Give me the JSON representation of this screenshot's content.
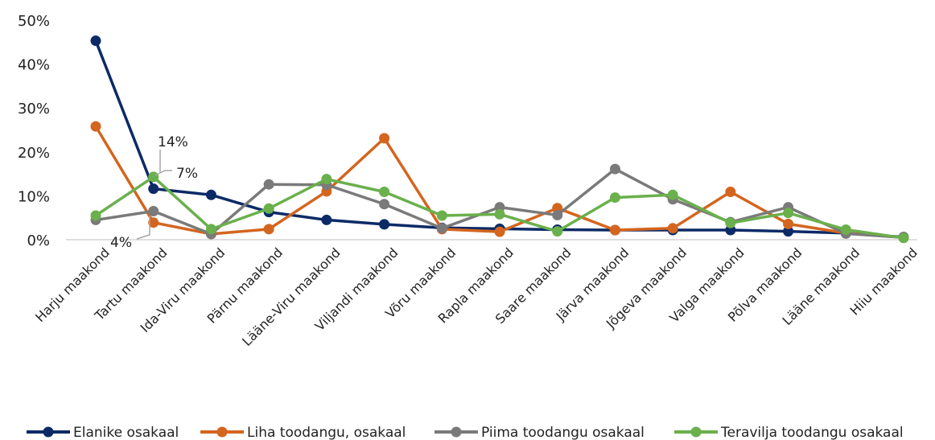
{
  "chart_data": {
    "type": "line",
    "categories": [
      "Harju maakond",
      "Tartu maakond",
      "Ida-Viru maakond",
      "Pärnu maakond",
      "Lääne-Viru maakond",
      "Viljandi maakond",
      "Võru maakond",
      "Rapla maakond",
      "Saare maakond",
      "Järva maakond",
      "Jõgeva maakond",
      "Valga maakond",
      "Põlva maakond",
      "Lääne maakond",
      "Hiiu maakond"
    ],
    "ylim": [
      0,
      50
    ],
    "yticks": [
      "0%",
      "10%",
      "20%",
      "30%",
      "40%",
      "50%"
    ],
    "grid": false,
    "legend_position": "bottom",
    "series": [
      {
        "name": "Elanike osakaal",
        "color": "#0b2a66",
        "values": [
          45.3,
          11.6,
          10.2,
          6.3,
          4.5,
          3.5,
          2.7,
          2.5,
          2.3,
          2.2,
          2.2,
          2.2,
          1.9,
          1.5,
          0.6
        ]
      },
      {
        "name": "Liha toodangu, osakaal",
        "color": "#d4651f",
        "values": [
          25.8,
          3.9,
          1.3,
          2.4,
          11.0,
          23.1,
          2.4,
          1.8,
          7.2,
          2.2,
          2.6,
          10.9,
          3.6,
          1.5,
          0.5
        ]
      },
      {
        "name": "Piima toodangu osakaal",
        "color": "#7a7a7a",
        "values": [
          4.5,
          6.5,
          1.3,
          12.6,
          12.5,
          8.1,
          2.6,
          7.4,
          5.6,
          16.1,
          9.2,
          4.0,
          7.4,
          1.4,
          0.5
        ]
      },
      {
        "name": "Teravilja toodangu osakaal",
        "color": "#6ab04c",
        "values": [
          5.5,
          14.3,
          2.4,
          7.1,
          13.8,
          10.9,
          5.5,
          5.8,
          1.9,
          9.6,
          10.2,
          3.8,
          6.1,
          2.3,
          0.4
        ]
      }
    ],
    "annotations": [
      "14%",
      "7%",
      "4%"
    ]
  }
}
